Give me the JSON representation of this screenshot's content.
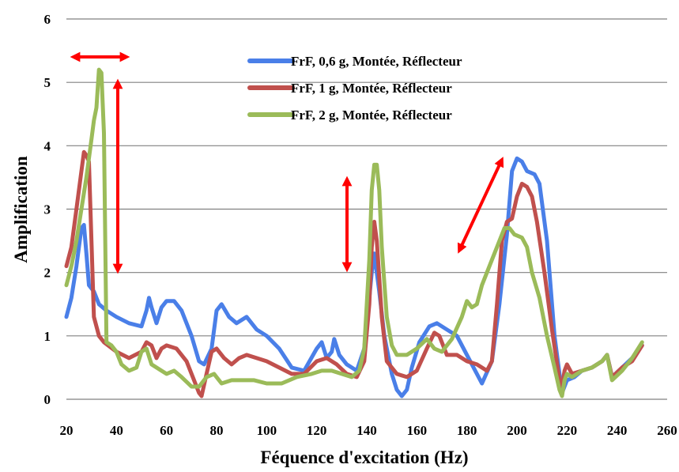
{
  "chart_data": {
    "type": "line",
    "title": "",
    "xlabel": "Féquence d'excitation (Hz)",
    "ylabel": "Amplification",
    "xlim": [
      20,
      260
    ],
    "ylim": [
      0,
      6
    ],
    "xticks": [
      20,
      40,
      60,
      80,
      100,
      120,
      140,
      160,
      180,
      200,
      220,
      240,
      260
    ],
    "yticks": [
      0,
      1,
      2,
      3,
      4,
      5,
      6
    ],
    "grid": "horizontal",
    "legend_position": "top-right",
    "series": [
      {
        "name": "FrF, 0,6 g, Montée, Réflecteur",
        "color": "#4a7fe8",
        "points": [
          [
            20,
            1.3
          ],
          [
            22,
            1.6
          ],
          [
            24,
            2.1
          ],
          [
            26,
            2.7
          ],
          [
            27,
            2.75
          ],
          [
            28,
            2.3
          ],
          [
            29,
            1.8
          ],
          [
            31,
            1.7
          ],
          [
            33,
            1.5
          ],
          [
            36,
            1.4
          ],
          [
            40,
            1.3
          ],
          [
            45,
            1.2
          ],
          [
            50,
            1.15
          ],
          [
            52,
            1.4
          ],
          [
            53,
            1.6
          ],
          [
            54,
            1.45
          ],
          [
            56,
            1.2
          ],
          [
            58,
            1.45
          ],
          [
            60,
            1.55
          ],
          [
            63,
            1.55
          ],
          [
            66,
            1.4
          ],
          [
            70,
            1.0
          ],
          [
            73,
            0.6
          ],
          [
            75,
            0.55
          ],
          [
            78,
            0.8
          ],
          [
            80,
            1.4
          ],
          [
            82,
            1.5
          ],
          [
            85,
            1.3
          ],
          [
            88,
            1.2
          ],
          [
            92,
            1.3
          ],
          [
            96,
            1.1
          ],
          [
            100,
            1.0
          ],
          [
            105,
            0.8
          ],
          [
            110,
            0.5
          ],
          [
            115,
            0.45
          ],
          [
            120,
            0.8
          ],
          [
            122,
            0.9
          ],
          [
            124,
            0.65
          ],
          [
            126,
            0.75
          ],
          [
            127,
            0.95
          ],
          [
            129,
            0.7
          ],
          [
            132,
            0.55
          ],
          [
            136,
            0.45
          ],
          [
            139,
            0.8
          ],
          [
            141,
            1.6
          ],
          [
            142,
            2.0
          ],
          [
            143,
            2.3
          ],
          [
            145,
            1.7
          ],
          [
            147,
            1.0
          ],
          [
            150,
            0.4
          ],
          [
            152,
            0.15
          ],
          [
            154,
            0.05
          ],
          [
            156,
            0.15
          ],
          [
            158,
            0.5
          ],
          [
            161,
            0.9
          ],
          [
            165,
            1.15
          ],
          [
            168,
            1.2
          ],
          [
            172,
            1.1
          ],
          [
            176,
            1.0
          ],
          [
            180,
            0.7
          ],
          [
            184,
            0.4
          ],
          [
            186,
            0.25
          ],
          [
            190,
            0.6
          ],
          [
            193,
            1.5
          ],
          [
            196,
            2.6
          ],
          [
            198,
            3.6
          ],
          [
            200,
            3.8
          ],
          [
            202,
            3.75
          ],
          [
            204,
            3.6
          ],
          [
            207,
            3.55
          ],
          [
            209,
            3.4
          ],
          [
            212,
            2.5
          ],
          [
            215,
            1.0
          ],
          [
            218,
            0.1
          ],
          [
            220,
            0.3
          ],
          [
            223,
            0.35
          ],
          [
            226,
            0.45
          ],
          [
            230,
            0.5
          ],
          [
            234,
            0.6
          ],
          [
            236,
            0.7
          ],
          [
            238,
            0.35
          ],
          [
            242,
            0.5
          ],
          [
            246,
            0.65
          ],
          [
            250,
            0.85
          ]
        ]
      },
      {
        "name": "FrF, 1 g, Montée, Réflecteur",
        "color": "#c0504d",
        "points": [
          [
            20,
            2.1
          ],
          [
            22,
            2.4
          ],
          [
            24,
            3.0
          ],
          [
            26,
            3.6
          ],
          [
            27,
            3.9
          ],
          [
            28,
            3.85
          ],
          [
            29,
            3.75
          ],
          [
            30,
            2.5
          ],
          [
            31,
            1.3
          ],
          [
            33,
            1.0
          ],
          [
            35,
            0.9
          ],
          [
            40,
            0.75
          ],
          [
            45,
            0.65
          ],
          [
            50,
            0.75
          ],
          [
            52,
            0.9
          ],
          [
            54,
            0.85
          ],
          [
            56,
            0.65
          ],
          [
            58,
            0.8
          ],
          [
            60,
            0.85
          ],
          [
            64,
            0.8
          ],
          [
            68,
            0.6
          ],
          [
            71,
            0.3
          ],
          [
            73,
            0.1
          ],
          [
            74,
            0.05
          ],
          [
            76,
            0.4
          ],
          [
            78,
            0.75
          ],
          [
            80,
            0.8
          ],
          [
            83,
            0.65
          ],
          [
            86,
            0.55
          ],
          [
            89,
            0.65
          ],
          [
            92,
            0.7
          ],
          [
            96,
            0.65
          ],
          [
            100,
            0.6
          ],
          [
            105,
            0.5
          ],
          [
            110,
            0.4
          ],
          [
            115,
            0.4
          ],
          [
            120,
            0.6
          ],
          [
            124,
            0.65
          ],
          [
            128,
            0.55
          ],
          [
            132,
            0.4
          ],
          [
            136,
            0.35
          ],
          [
            139,
            0.6
          ],
          [
            141,
            1.5
          ],
          [
            142,
            2.4
          ],
          [
            143,
            2.8
          ],
          [
            144,
            2.5
          ],
          [
            146,
            1.3
          ],
          [
            148,
            0.6
          ],
          [
            152,
            0.4
          ],
          [
            156,
            0.35
          ],
          [
            160,
            0.45
          ],
          [
            164,
            0.8
          ],
          [
            167,
            1.05
          ],
          [
            169,
            1.0
          ],
          [
            172,
            0.7
          ],
          [
            176,
            0.7
          ],
          [
            180,
            0.6
          ],
          [
            184,
            0.55
          ],
          [
            188,
            0.45
          ],
          [
            190,
            0.6
          ],
          [
            192,
            1.5
          ],
          [
            194,
            2.5
          ],
          [
            196,
            2.8
          ],
          [
            198,
            2.85
          ],
          [
            200,
            3.2
          ],
          [
            202,
            3.4
          ],
          [
            204,
            3.35
          ],
          [
            206,
            3.2
          ],
          [
            208,
            2.8
          ],
          [
            211,
            2.0
          ],
          [
            214,
            1.1
          ],
          [
            217,
            0.3
          ],
          [
            218,
            0.2
          ],
          [
            219,
            0.45
          ],
          [
            220,
            0.55
          ],
          [
            222,
            0.4
          ],
          [
            226,
            0.45
          ],
          [
            230,
            0.5
          ],
          [
            234,
            0.6
          ],
          [
            236,
            0.7
          ],
          [
            238,
            0.35
          ],
          [
            242,
            0.5
          ],
          [
            246,
            0.6
          ],
          [
            250,
            0.85
          ]
        ]
      },
      {
        "name": "FrF, 2 g, Montée, Réflecteur",
        "color": "#9bbb59",
        "points": [
          [
            20,
            1.8
          ],
          [
            22,
            2.1
          ],
          [
            24,
            2.5
          ],
          [
            26,
            3.0
          ],
          [
            28,
            3.5
          ],
          [
            30,
            4.1
          ],
          [
            31,
            4.4
          ],
          [
            32,
            4.6
          ],
          [
            33,
            5.2
          ],
          [
            34,
            5.15
          ],
          [
            35,
            4.2
          ],
          [
            36,
            0.9
          ],
          [
            38,
            0.85
          ],
          [
            40,
            0.75
          ],
          [
            42,
            0.55
          ],
          [
            45,
            0.45
          ],
          [
            48,
            0.5
          ],
          [
            50,
            0.75
          ],
          [
            52,
            0.8
          ],
          [
            54,
            0.55
          ],
          [
            56,
            0.5
          ],
          [
            58,
            0.45
          ],
          [
            60,
            0.4
          ],
          [
            63,
            0.45
          ],
          [
            66,
            0.35
          ],
          [
            70,
            0.2
          ],
          [
            73,
            0.2
          ],
          [
            76,
            0.35
          ],
          [
            79,
            0.4
          ],
          [
            82,
            0.25
          ],
          [
            86,
            0.3
          ],
          [
            90,
            0.3
          ],
          [
            95,
            0.3
          ],
          [
            100,
            0.25
          ],
          [
            106,
            0.25
          ],
          [
            112,
            0.35
          ],
          [
            118,
            0.4
          ],
          [
            122,
            0.45
          ],
          [
            126,
            0.45
          ],
          [
            130,
            0.4
          ],
          [
            134,
            0.35
          ],
          [
            137,
            0.45
          ],
          [
            139,
            0.8
          ],
          [
            141,
            2.2
          ],
          [
            142,
            3.3
          ],
          [
            143,
            3.7
          ],
          [
            144,
            3.7
          ],
          [
            145,
            3.3
          ],
          [
            146,
            2.4
          ],
          [
            148,
            1.3
          ],
          [
            150,
            0.85
          ],
          [
            152,
            0.7
          ],
          [
            156,
            0.7
          ],
          [
            160,
            0.8
          ],
          [
            164,
            0.95
          ],
          [
            167,
            0.8
          ],
          [
            170,
            0.75
          ],
          [
            174,
            0.95
          ],
          [
            178,
            1.3
          ],
          [
            180,
            1.55
          ],
          [
            182,
            1.45
          ],
          [
            184,
            1.5
          ],
          [
            186,
            1.8
          ],
          [
            189,
            2.1
          ],
          [
            192,
            2.4
          ],
          [
            195,
            2.7
          ],
          [
            197,
            2.7
          ],
          [
            199,
            2.6
          ],
          [
            202,
            2.55
          ],
          [
            204,
            2.4
          ],
          [
            206,
            2.0
          ],
          [
            209,
            1.6
          ],
          [
            212,
            1.0
          ],
          [
            215,
            0.5
          ],
          [
            217,
            0.15
          ],
          [
            218,
            0.05
          ],
          [
            219,
            0.3
          ],
          [
            220,
            0.4
          ],
          [
            222,
            0.35
          ],
          [
            226,
            0.45
          ],
          [
            230,
            0.5
          ],
          [
            234,
            0.6
          ],
          [
            236,
            0.7
          ],
          [
            238,
            0.3
          ],
          [
            242,
            0.45
          ],
          [
            246,
            0.65
          ],
          [
            250,
            0.9
          ]
        ]
      }
    ]
  }
}
